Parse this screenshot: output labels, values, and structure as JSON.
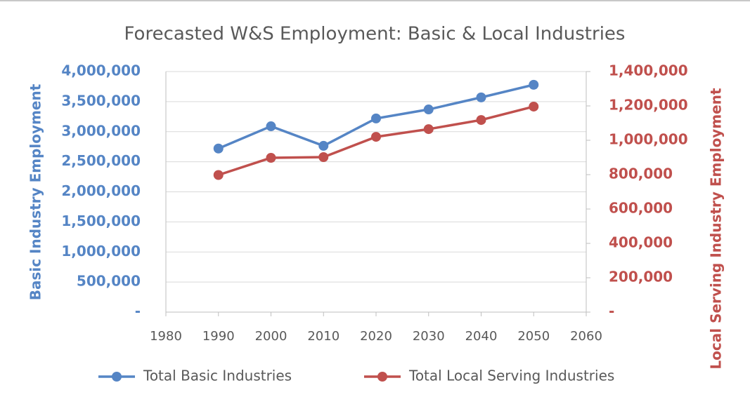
{
  "chart_data": {
    "type": "line",
    "title": "Forecasted W&S Employment: Basic & Local Industries",
    "y_label": "Basic Industry Employment",
    "y2_label": "Local Serving Industry Employment",
    "x": [
      1990,
      2000,
      2010,
      2020,
      2030,
      2040,
      2050
    ],
    "xlim": [
      1980,
      2060
    ],
    "xticks": [
      1980,
      1990,
      2000,
      2010,
      2020,
      2030,
      2040,
      2050,
      2060
    ],
    "ylim": [
      0,
      4000000
    ],
    "yticks": [
      {
        "value": 0,
        "label": "-"
      },
      {
        "value": 500000,
        "label": "500,000"
      },
      {
        "value": 1000000,
        "label": "1,000,000"
      },
      {
        "value": 1500000,
        "label": "1,500,000"
      },
      {
        "value": 2000000,
        "label": "2,000,000"
      },
      {
        "value": 2500000,
        "label": "2,500,000"
      },
      {
        "value": 3000000,
        "label": "3,000,000"
      },
      {
        "value": 3500000,
        "label": "3,500,000"
      },
      {
        "value": 4000000,
        "label": "4,000,000"
      }
    ],
    "y2lim": [
      0,
      1400000
    ],
    "y2ticks": [
      {
        "value": 0,
        "label": "-"
      },
      {
        "value": 200000,
        "label": "200,000"
      },
      {
        "value": 400000,
        "label": "400,000"
      },
      {
        "value": 600000,
        "label": "600,000"
      },
      {
        "value": 800000,
        "label": "800,000"
      },
      {
        "value": 1000000,
        "label": "1,000,000"
      },
      {
        "value": 1200000,
        "label": "1,200,000"
      },
      {
        "value": 1400000,
        "label": "1,400,000"
      }
    ],
    "grid": true,
    "legend": "bottom",
    "series": [
      {
        "name": "Total Basic Industries",
        "color": "#5585c5",
        "values": [
          2720000,
          3090000,
          2765000,
          3220000,
          3370000,
          3570000,
          3780000
        ]
      },
      {
        "name": "Total Local Serving Industries",
        "color": "#c0504d",
        "axis": "y2",
        "values": [
          798000,
          898000,
          902000,
          1020000,
          1065000,
          1118000,
          1196000
        ]
      }
    ]
  }
}
